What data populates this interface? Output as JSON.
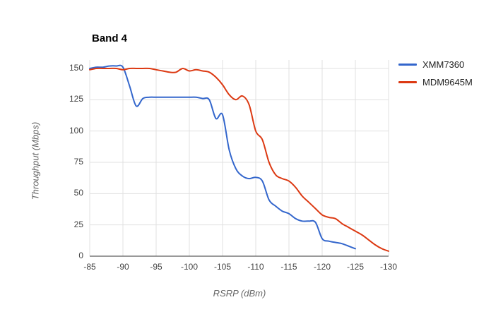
{
  "chart_data": {
    "type": "line",
    "title": "Band 4",
    "xlabel": "RSRP (dBm)",
    "ylabel": "Throughput (Mbps)",
    "xlim": [
      -85,
      -130
    ],
    "ylim": [
      0,
      150
    ],
    "xticks": [
      -85,
      -90,
      -95,
      -100,
      -105,
      -110,
      -115,
      -120,
      -125,
      -130
    ],
    "yticks": [
      0,
      25,
      50,
      75,
      100,
      125,
      150
    ],
    "grid": true,
    "legend_position": "right",
    "colors": {
      "gridline": "#e0e0e0",
      "axis_baseline": "#333333",
      "tick_label": "#444444",
      "axis_title": "#666666"
    },
    "series": [
      {
        "name": "XMM7360",
        "color": "#3366cc",
        "x": [
          -85,
          -86,
          -87,
          -88,
          -89,
          -90,
          -91,
          -92,
          -93,
          -94,
          -95,
          -96,
          -97,
          -98,
          -99,
          -100,
          -101,
          -102,
          -103,
          -104,
          -105,
          -106,
          -107,
          -108,
          -109,
          -110,
          -111,
          -112,
          -113,
          -114,
          -115,
          -116,
          -117,
          -118,
          -119,
          -120,
          -121,
          -122,
          -123,
          -124,
          -125
        ],
        "values": [
          150,
          151,
          151,
          152,
          152,
          151,
          136,
          120,
          126,
          127,
          127,
          127,
          127,
          127,
          127,
          127,
          127,
          126,
          125,
          110,
          113,
          85,
          70,
          64,
          62,
          63,
          60,
          45,
          40,
          36,
          34,
          30,
          28,
          28,
          27,
          14,
          12,
          11,
          10,
          8,
          6
        ]
      },
      {
        "name": "MDM9645M",
        "color": "#dc3912",
        "x": [
          -85,
          -86,
          -87,
          -88,
          -89,
          -90,
          -91,
          -92,
          -93,
          -94,
          -95,
          -96,
          -97,
          -98,
          -99,
          -100,
          -101,
          -102,
          -103,
          -104,
          -105,
          -106,
          -107,
          -108,
          -109,
          -110,
          -111,
          -112,
          -113,
          -114,
          -115,
          -116,
          -117,
          -118,
          -119,
          -120,
          -121,
          -122,
          -123,
          -124,
          -125,
          -126,
          -127,
          -128,
          -129,
          -130
        ],
        "values": [
          149,
          150,
          150,
          150,
          150,
          149,
          150,
          150,
          150,
          150,
          149,
          148,
          147,
          147,
          150,
          148,
          149,
          148,
          147,
          143,
          137,
          129,
          125,
          128,
          121,
          100,
          93,
          75,
          65,
          62,
          60,
          55,
          48,
          43,
          38,
          33,
          31,
          30,
          26,
          23,
          20,
          17,
          13,
          9,
          6,
          4
        ]
      }
    ]
  }
}
